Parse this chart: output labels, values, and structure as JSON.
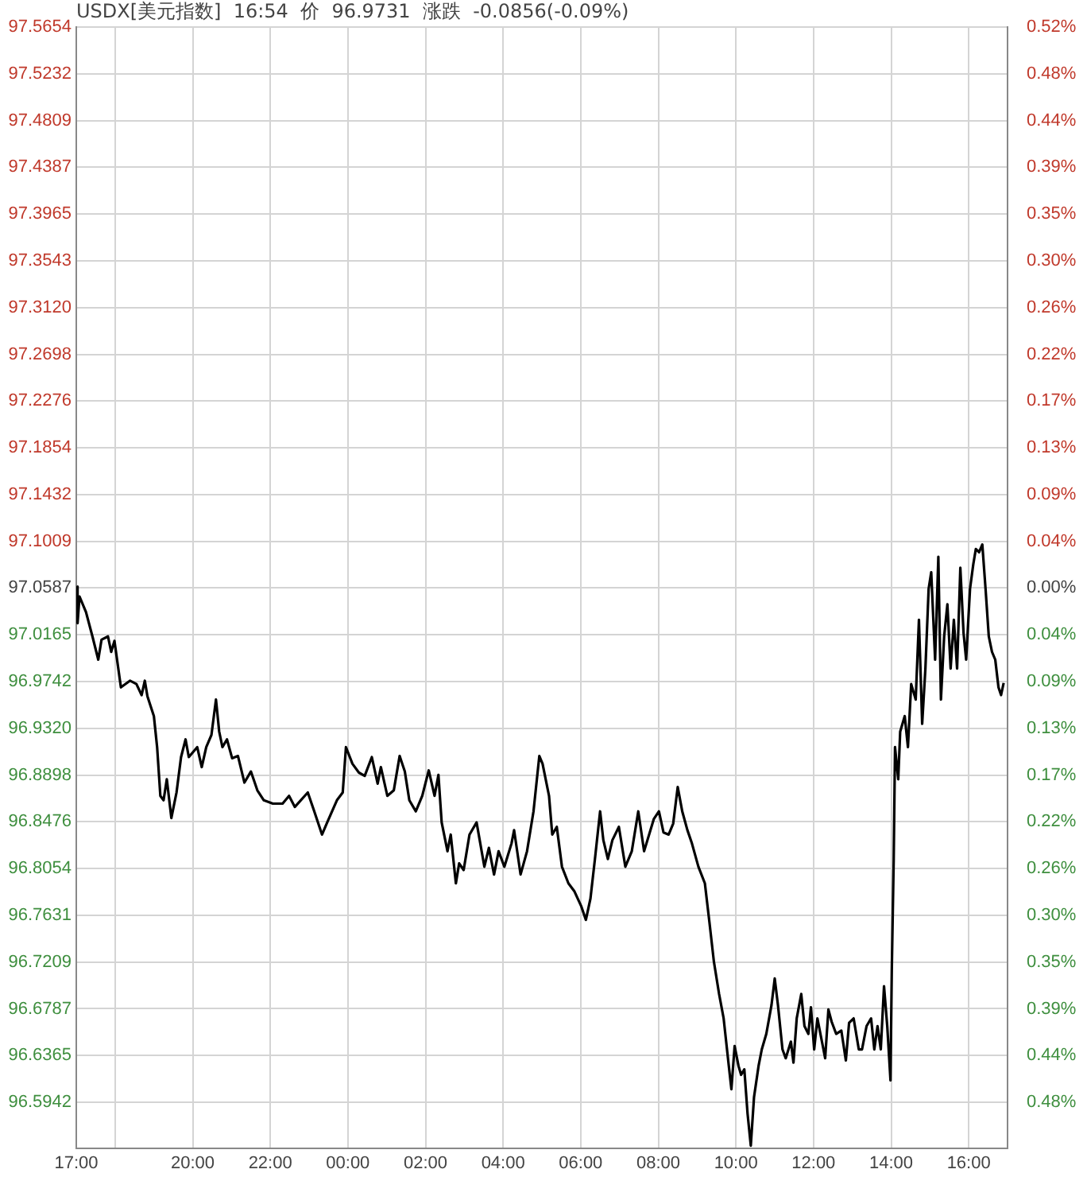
{
  "chart_data": {
    "type": "line",
    "title": "USDX[美元指数]  16:54  价  96.9731  涨跌  -0.0856(-0.09%)",
    "x": [
      "--01-01T17:00",
      "--01-01T17:02",
      "--01-01T17:05",
      "--01-01T17:15",
      "--01-01T17:25",
      "--01-01T17:34",
      "--01-01T17:39",
      "--01-01T17:49",
      "--01-01T17:54",
      "--01-01T17:59",
      "--01-01T18:09",
      "--01-01T18:23",
      "--01-01T18:33",
      "--01-01T18:41",
      "--01-01T18:46",
      "--01-01T18:50",
      "--01-01T19:00",
      "--01-01T19:05",
      "--01-01T19:10",
      "--01-01T19:15",
      "--01-01T19:20",
      "--01-01T19:27",
      "--01-01T19:35",
      "--01-01T19:42",
      "--01-01T19:49",
      "--01-01T19:54",
      "--01-01T20:07",
      "--01-01T20:14",
      "--01-01T20:21",
      "--01-01T20:29",
      "--01-01T20:36",
      "--01-01T20:41",
      "--01-01T20:46",
      "--01-01T20:53",
      "--01-01T21:01",
      "--01-01T21:10",
      "--01-01T21:20",
      "--01-01T21:30",
      "--01-01T21:40",
      "--01-01T21:50",
      "--01-01T22:04",
      "--01-01T22:19",
      "--01-01T22:29",
      "--01-01T22:38",
      "--01-01T22:58",
      "--01-01T23:08",
      "--01-01T23:20",
      "--01-01T23:28",
      "--01-01T23:43",
      "--01-01T23:52",
      "--01-01T23:57",
      "--01-02T00:07",
      "--01-02T00:17",
      "--01-02T00:26",
      "--01-02T00:37",
      "--01-02T00:46",
      "--01-02T00:51",
      "--01-02T01:01",
      "--01-02T01:11",
      "--01-02T01:20",
      "--01-02T01:28",
      "--01-02T01:35",
      "--01-02T01:45",
      "--01-02T01:55",
      "--01-02T02:05",
      "--01-02T02:14",
      "--01-02T02:20",
      "--01-02T02:25",
      "--01-02T02:34",
      "--01-02T02:39",
      "--01-02T02:47",
      "--01-02T02:52",
      "--01-02T02:59",
      "--01-02T03:08",
      "--01-02T03:19",
      "--01-02T03:31",
      "--01-02T03:38",
      "--01-02T03:46",
      "--01-02T03:53",
      "--01-02T04:02",
      "--01-02T04:13",
      "--01-02T04:17",
      "--01-02T04:27",
      "--01-02T04:37",
      "--01-02T04:47",
      "--01-02T04:56",
      "--01-02T05:01",
      "--01-02T05:11",
      "--01-02T05:16",
      "--01-02T05:23",
      "--01-02T05:31",
      "--01-02T05:41",
      "--01-02T05:50",
      "--01-02T06:01",
      "--01-02T06:08",
      "--01-02T06:15",
      "--01-02T06:22",
      "--01-02T06:30",
      "--01-02T06:35",
      "--01-02T06:42",
      "--01-02T06:49",
      "--01-02T06:59",
      "--01-02T07:09",
      "--01-02T07:19",
      "--01-02T07:29",
      "--01-02T07:38",
      "--01-02T07:53",
      "--01-02T08:01",
      "--01-02T08:08",
      "--01-02T08:16",
      "--01-02T08:23",
      "--01-02T08:30",
      "--01-02T08:37",
      "--01-02T08:45",
      "--01-02T08:52",
      "--01-02T09:02",
      "--01-02T09:12",
      "--01-02T09:19",
      "--01-02T09:26",
      "--01-02T09:34",
      "--01-02T09:41",
      "--01-02T09:49",
      "--01-02T09:53",
      "--01-02T09:58",
      "--01-02T10:04",
      "--01-02T10:08",
      "--01-02T10:13",
      "--01-02T10:18",
      "--01-02T10:23",
      "--01-02T10:28",
      "--01-02T10:35",
      "--01-02T10:40",
      "--01-02T10:47",
      "--01-02T10:55",
      "--01-02T11:00",
      "--01-02T11:05",
      "--01-02T11:12",
      "--01-02T11:17",
      "--01-02T11:25",
      "--01-02T11:29",
      "--01-02T11:34",
      "--01-02T11:41",
      "--01-02T11:46",
      "--01-02T11:52",
      "--01-02T11:56",
      "--01-02T12:01",
      "--01-02T12:06",
      "--01-02T12:13",
      "--01-02T12:18",
      "--01-02T12:23",
      "--01-02T12:28",
      "--01-02T12:35",
      "--01-02T12:43",
      "--01-02T12:50",
      "--01-02T12:55",
      "--01-02T13:02",
      "--01-02T13:10",
      "--01-02T13:15",
      "--01-02T13:22",
      "--01-02T13:29",
      "--01-02T13:34",
      "--01-02T13:39",
      "--01-02T13:44",
      "--01-02T13:49",
      "--01-02T13:54",
      "--01-02T13:59",
      "--01-02T14:01",
      "--01-02T14:04",
      "--01-02T14:06",
      "--01-02T14:11",
      "--01-02T14:14",
      "--01-02T14:21",
      "--01-02T14:26",
      "--01-02T14:31",
      "--01-02T14:38",
      "--01-02T14:43",
      "--01-02T14:48",
      "--01-02T14:53",
      "--01-02T14:58",
      "--01-02T15:02",
      "--01-02T15:08",
      "--01-02T15:13",
      "--01-02T15:17",
      "--01-02T15:22",
      "--01-02T15:27",
      "--01-02T15:32",
      "--01-02T15:37",
      "--01-02T15:42",
      "--01-02T15:47",
      "--01-02T15:52",
      "--01-02T15:56",
      "--01-02T16:02",
      "--01-02T16:07",
      "--01-02T16:11",
      "--01-02T16:16",
      "--01-02T16:21",
      "--01-02T16:26",
      "--01-02T16:31",
      "--01-02T16:36",
      "--01-02T16:41",
      "--01-02T16:46",
      "--01-02T16:50",
      "--01-02T16:54"
    ],
    "series": [
      {
        "color": "#000000",
        "values": [
          97.06,
          97.027,
          97.051,
          97.037,
          97.015,
          96.994,
          97.012,
          97.015,
          97.001,
          97.011,
          96.969,
          96.975,
          96.972,
          96.962,
          96.975,
          96.961,
          96.943,
          96.915,
          96.871,
          96.867,
          96.886,
          96.851,
          96.874,
          96.906,
          96.922,
          96.906,
          96.915,
          96.897,
          96.915,
          96.926,
          96.958,
          96.929,
          96.915,
          96.922,
          96.905,
          96.907,
          96.883,
          96.893,
          96.876,
          96.867,
          96.864,
          96.864,
          96.871,
          96.861,
          96.874,
          96.857,
          96.836,
          96.847,
          96.867,
          96.874,
          96.915,
          96.9,
          96.892,
          96.889,
          96.906,
          96.882,
          96.897,
          96.871,
          96.876,
          96.907,
          96.893,
          96.867,
          96.857,
          96.871,
          96.894,
          96.871,
          96.89,
          96.847,
          96.821,
          96.836,
          96.792,
          96.81,
          96.804,
          96.836,
          96.847,
          96.807,
          96.824,
          96.8,
          96.821,
          96.807,
          96.828,
          96.84,
          96.8,
          96.821,
          96.857,
          96.907,
          96.9,
          96.871,
          96.836,
          96.843,
          96.807,
          96.792,
          96.785,
          96.771,
          96.759,
          96.778,
          96.814,
          96.857,
          96.831,
          96.814,
          96.831,
          96.843,
          96.807,
          96.821,
          96.857,
          96.821,
          96.85,
          96.857,
          96.838,
          96.836,
          96.846,
          96.879,
          96.857,
          96.84,
          96.828,
          96.807,
          96.792,
          96.757,
          96.721,
          96.692,
          96.67,
          96.627,
          96.606,
          96.645,
          96.627,
          96.619,
          96.624,
          96.584,
          96.555,
          96.599,
          96.627,
          96.642,
          96.656,
          96.682,
          96.706,
          96.682,
          96.642,
          96.634,
          96.649,
          96.63,
          96.67,
          96.692,
          96.663,
          96.656,
          96.68,
          96.642,
          96.67,
          96.649,
          96.634,
          96.678,
          96.667,
          96.656,
          96.659,
          96.632,
          96.666,
          96.67,
          96.642,
          96.642,
          96.663,
          96.67,
          96.642,
          96.663,
          96.642,
          96.699,
          96.663,
          96.614,
          96.713,
          96.814,
          96.915,
          96.886,
          96.929,
          96.943,
          96.915,
          96.972,
          96.958,
          97.03,
          96.936,
          96.986,
          97.058,
          97.073,
          96.994,
          97.087,
          96.958,
          97.015,
          97.044,
          96.986,
          97.03,
          96.986,
          97.077,
          97.018,
          96.994,
          97.058,
          97.08,
          97.094,
          97.091,
          97.098,
          97.058,
          97.015,
          97.001,
          96.994,
          96.969,
          96.962,
          96.973
        ]
      }
    ],
    "xlim": [
      "--01-01T17:00",
      "--01-02T17:00"
    ],
    "xticks": [
      {
        "value": "--01-01T17:00",
        "label": "17:00"
      },
      {
        "value": "--01-01T18:00",
        "label": null
      },
      {
        "value": "--01-01T20:00",
        "label": "20:00"
      },
      {
        "value": "--01-01T22:00",
        "label": "22:00"
      },
      {
        "value": "--01-02T00:00",
        "label": "00:00"
      },
      {
        "value": "--01-02T02:00",
        "label": "02:00"
      },
      {
        "value": "--01-02T04:00",
        "label": "04:00"
      },
      {
        "value": "--01-02T06:00",
        "label": "06:00"
      },
      {
        "value": "--01-02T08:00",
        "label": "08:00"
      },
      {
        "value": "--01-02T10:00",
        "label": "10:00"
      },
      {
        "value": "--01-02T12:00",
        "label": "12:00"
      },
      {
        "value": "--01-02T14:00",
        "label": "14:00"
      },
      {
        "value": "--01-02T16:00",
        "label": "16:00"
      }
    ],
    "ylim": [
      96.5526,
      97.5654
    ],
    "yticks": [
      97.5654,
      97.5232,
      97.4809,
      97.4387,
      97.3965,
      97.3543,
      {
        "value": 97.312,
        "label": "97.3120"
      },
      97.2698,
      97.2276,
      97.1854,
      97.1432,
      97.1009,
      97.0587,
      97.0165,
      96.9742,
      {
        "value": 96.932,
        "label": "96.9320"
      },
      96.8898,
      96.8476,
      96.8054,
      96.7631,
      96.7209,
      96.6787,
      96.6365,
      96.5942
    ],
    "y2lim": [
      -0.5214,
      0.522
    ],
    "y2ticks": [
      {
        "value": 0.522,
        "label": "0.52%"
      },
      {
        "value": 0.4785,
        "label": "0.48%"
      },
      {
        "value": 0.435,
        "label": "0.44%"
      },
      {
        "value": 0.3915,
        "label": "0.39%"
      },
      {
        "value": 0.348,
        "label": "0.35%"
      },
      {
        "value": 0.3045,
        "label": "0.30%"
      },
      {
        "value": 0.261,
        "label": "0.26%"
      },
      {
        "value": 0.2175,
        "label": "0.22%"
      },
      {
        "value": 0.174,
        "label": "0.17%"
      },
      {
        "value": 0.1305,
        "label": "0.13%"
      },
      {
        "value": 0.087,
        "label": "0.09%"
      },
      {
        "value": 0.0435,
        "label": "0.04%"
      },
      {
        "value": 0,
        "label": "0.00%"
      },
      {
        "value": -0.0435,
        "label": "0.04%"
      },
      {
        "value": -0.087,
        "label": "0.09%"
      },
      {
        "value": -0.1305,
        "label": "0.13%"
      },
      {
        "value": -0.174,
        "label": "0.17%"
      },
      {
        "value": -0.2175,
        "label": "0.22%"
      },
      {
        "value": -0.261,
        "label": "0.26%"
      },
      {
        "value": -0.3045,
        "label": "0.30%"
      },
      {
        "value": -0.348,
        "label": "0.35%"
      },
      {
        "value": -0.3915,
        "label": "0.39%"
      },
      {
        "value": -0.435,
        "label": "0.44%"
      },
      {
        "value": -0.4785,
        "label": "0.48%"
      }
    ],
    "grid": true,
    "legend": false,
    "marker": "none",
    "line_style": "solid"
  }
}
